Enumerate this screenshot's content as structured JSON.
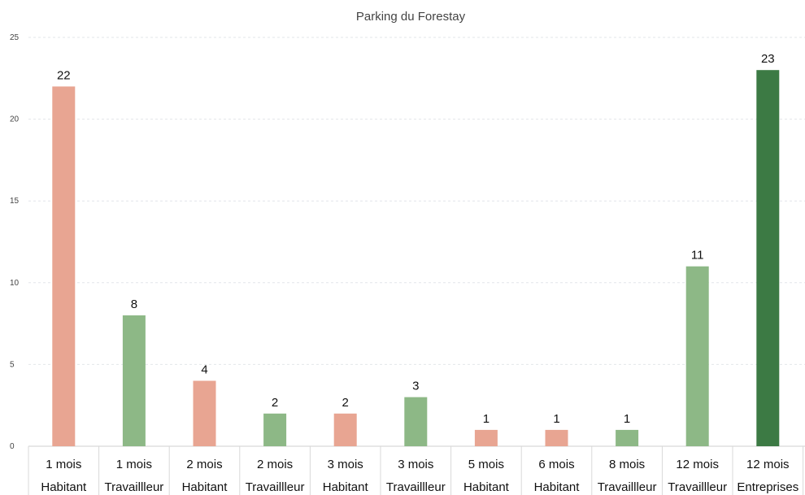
{
  "chart_data": {
    "type": "bar",
    "title": "Parking du Forestay",
    "xlabel": "",
    "ylabel": "",
    "ylim": [
      0,
      25
    ],
    "yticks": [
      0,
      5,
      10,
      15,
      20,
      25
    ],
    "grid": true,
    "legend": "none",
    "categories": [
      [
        "1 mois",
        "Habitant"
      ],
      [
        "1 mois",
        "Travaillleur"
      ],
      [
        "2 mois",
        "Habitant"
      ],
      [
        "2 mois",
        "Travaillleur"
      ],
      [
        "3 mois",
        "Habitant"
      ],
      [
        "3 mois",
        "Travaillleur"
      ],
      [
        "5 mois",
        "Habitant"
      ],
      [
        "6 mois",
        "Habitant"
      ],
      [
        "8 mois",
        "Travaillleur"
      ],
      [
        "12 mois",
        "Travaillleur"
      ],
      [
        "12 mois",
        "Entreprises"
      ]
    ],
    "values": [
      22,
      8,
      4,
      2,
      2,
      3,
      1,
      1,
      1,
      11,
      23
    ],
    "data_labels": [
      "22",
      "8",
      "4",
      "2",
      "2",
      "3",
      "1",
      "1",
      "1",
      "11",
      "23"
    ],
    "colors": {
      "Habitant": "#e8a592",
      "Travaillleur": "#8db886",
      "Entreprises": "#3c7a44"
    }
  }
}
